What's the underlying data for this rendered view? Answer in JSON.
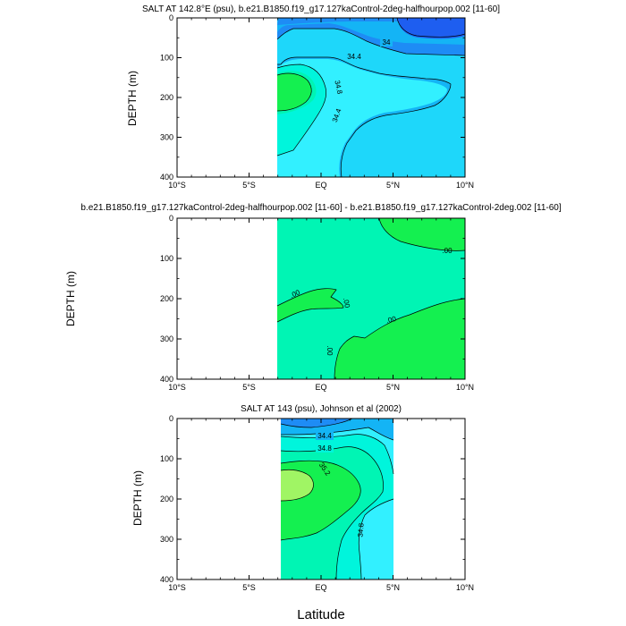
{
  "xlabel": "Latitude",
  "x_tick_labels": [
    "10°S",
    "5°S",
    "EQ",
    "5°N",
    "10°N"
  ],
  "y_tick_labels": [
    "0",
    "100",
    "200",
    "300",
    "400"
  ],
  "colors": {
    "c_blue_dark": "#1e5ef0",
    "c_blue": "#1e8cf5",
    "c_sky": "#14b4f5",
    "c_lightblue": "#1ed7fa",
    "c_cyan": "#32f0ff",
    "c_aqua": "#00f5dc",
    "c_seagreen": "#00f5b4",
    "c_green": "#14f050",
    "c_lightgreen": "#a0f564"
  },
  "chart_data": [
    {
      "type": "contour",
      "title": "SALT AT 142.8°E (psu), b.e21.B1850.f19_g17.127kaControl-2deg-halfhourpop.002 [11-60]",
      "xlabel": "",
      "ylabel": "DEPTH (m)",
      "xlim": [
        -10,
        10
      ],
      "ylim": [
        400,
        0
      ],
      "data_xrange": [
        -3.3,
        10
      ],
      "contour_labels": [
        "34",
        "34.4",
        "34.8",
        "34.4"
      ]
    },
    {
      "type": "contour",
      "title": "b.e21.B1850.f19_g17.127kaControl-2deg-halfhourpop.002 [11-60] - b.e21.B1850.f19_g17.127kaControl-2deg.002 [11-60]",
      "xlabel": "",
      "ylabel": "DEPTH (m)",
      "xlim": [
        -10,
        10
      ],
      "ylim": [
        400,
        0
      ],
      "data_xrange": [
        -3.3,
        10
      ],
      "contour_labels": [
        ".00",
        ".00",
        ".00",
        ".00",
        ".00"
      ]
    },
    {
      "type": "contour",
      "title": "SALT AT 143 (psu), Johnson et al (2002)",
      "xlabel": "Latitude",
      "ylabel": "DEPTH (m)",
      "xlim": [
        -10,
        10
      ],
      "ylim": [
        400,
        0
      ],
      "data_xrange": [
        -3.3,
        4.5
      ],
      "contour_labels": [
        "34.4",
        "34.8",
        "35.2",
        "34.8"
      ]
    }
  ]
}
